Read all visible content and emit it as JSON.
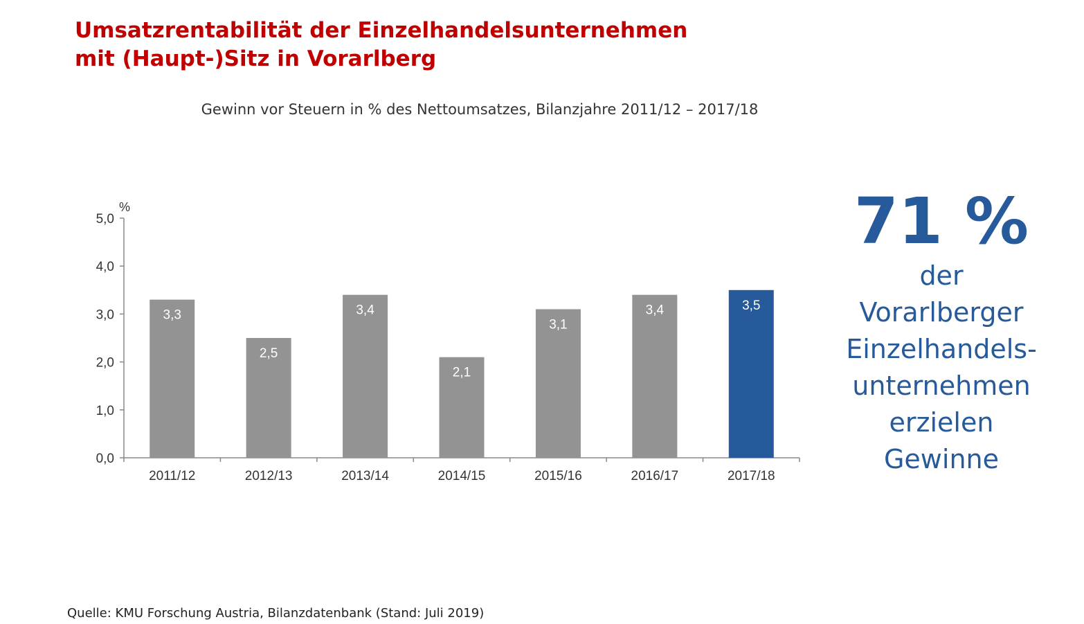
{
  "title_lines": [
    "Umsatzrentabilität der Einzelhandelsunternehmen",
    "mit (Haupt-)Sitz in Vorarlberg"
  ],
  "subtitle": "Gewinn vor Steuern in % des Nettoumsatzes, Bilanzjahre 2011/12 – 2017/18",
  "chart_data": {
    "type": "bar",
    "title": "Gewinn vor Steuern in % des Nettoumsatzes, Bilanzjahre 2011/12 – 2017/18",
    "ylabel": "%",
    "categories": [
      "2011/12",
      "2012/13",
      "2013/14",
      "2014/15",
      "2015/16",
      "2016/17",
      "2017/18"
    ],
    "values": [
      3.3,
      2.5,
      3.4,
      2.1,
      3.1,
      3.4,
      3.5
    ],
    "value_labels": [
      "3,3",
      "2,5",
      "3,4",
      "2,1",
      "3,1",
      "3,4",
      "3,5"
    ],
    "ylim": [
      0,
      5
    ],
    "yticks": [
      0,
      1,
      2,
      3,
      4,
      5
    ],
    "ytick_labels": [
      "0,0",
      "1,0",
      "2,0",
      "3,0",
      "4,0",
      "5,0"
    ],
    "grid": false,
    "legend": "none",
    "bar_color": "#939393",
    "highlight_index": 6,
    "highlight_color": "#275a9a"
  },
  "callout": {
    "value": "71 %",
    "lines": [
      "der",
      "Vorarlberger",
      "Einzelhandels-",
      "unternehmen",
      "erzielen",
      "Gewinne"
    ]
  },
  "source": "Quelle: KMU Forschung Austria, Bilanzdatenbank (Stand: Juli 2019)"
}
